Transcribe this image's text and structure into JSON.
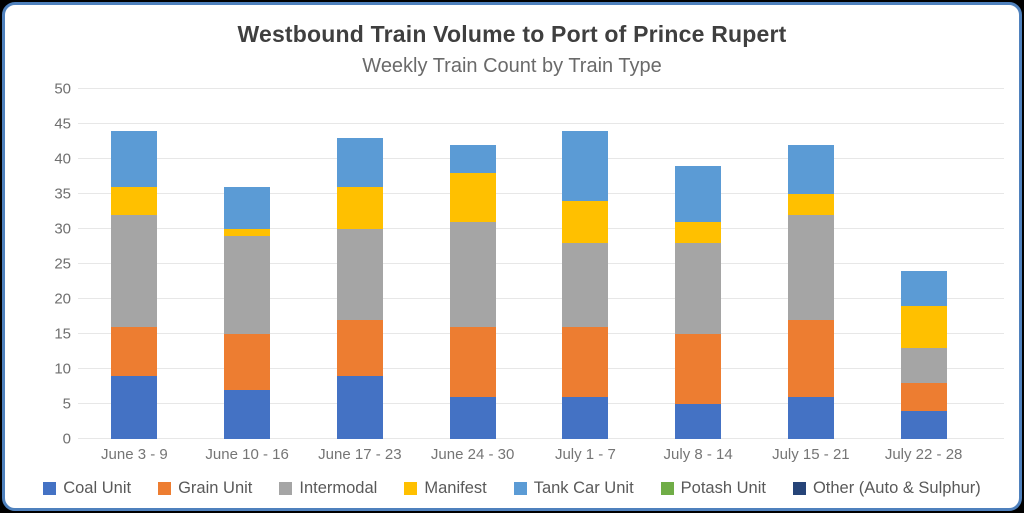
{
  "frame": {
    "border_color": "#4f81bd",
    "background": "#ffffff",
    "outside_background": "#000000"
  },
  "chart_data": {
    "type": "bar",
    "stacked": true,
    "title": "Westbound Train Volume to Port of Prince Rupert",
    "subtitle": "Weekly Train Count by Train Type",
    "categories": [
      "June 3 - 9",
      "June 10 - 16",
      "June 17 - 23",
      "June 24 - 30",
      "July 1 - 7",
      "July 8 - 14",
      "July 15 - 21",
      "July 22 - 28"
    ],
    "series": [
      {
        "name": "Coal Unit",
        "color": "#4472C4",
        "values": [
          9,
          7,
          9,
          6,
          6,
          5,
          6,
          4
        ]
      },
      {
        "name": "Grain Unit",
        "color": "#ED7D31",
        "values": [
          7,
          8,
          8,
          10,
          10,
          10,
          11,
          4
        ]
      },
      {
        "name": "Intermodal",
        "color": "#A5A5A5",
        "values": [
          16,
          14,
          13,
          15,
          12,
          13,
          15,
          5
        ]
      },
      {
        "name": "Manifest",
        "color": "#FFC000",
        "values": [
          4,
          1,
          6,
          7,
          6,
          3,
          3,
          6
        ]
      },
      {
        "name": "Tank Car Unit",
        "color": "#5B9BD5",
        "values": [
          8,
          6,
          7,
          4,
          10,
          8,
          7,
          5
        ]
      },
      {
        "name": "Potash Unit",
        "color": "#70AD47",
        "values": [
          0,
          0,
          0,
          0,
          0,
          0,
          0,
          0
        ]
      },
      {
        "name": "Other (Auto & Sulphur)",
        "color": "#264478",
        "values": [
          0,
          0,
          0,
          0,
          0,
          0,
          0,
          0
        ]
      }
    ],
    "totals": [
      44,
      36,
      43,
      42,
      44,
      39,
      42,
      24
    ],
    "ylim": [
      0,
      50
    ],
    "y_ticks": [
      0,
      5,
      10,
      15,
      20,
      25,
      30,
      35,
      40,
      45,
      50
    ],
    "grid": true,
    "grid_color": "#e7e7e7",
    "legend_position": "bottom",
    "xlabel": "",
    "ylabel": ""
  }
}
